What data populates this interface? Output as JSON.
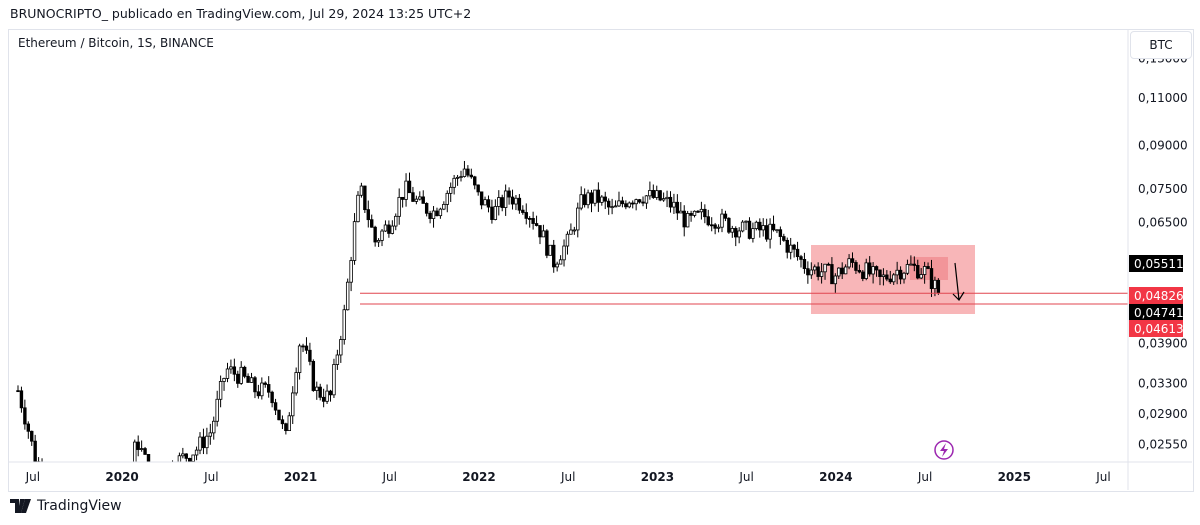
{
  "header": "BRUNOCRIPTO_ publicado en TradingView.com, Jul 29, 2024 13:25 UTC+2",
  "symbol": "Ethereum / Bitcoin, 1S, BINANCE",
  "currency": "BTC",
  "footer": "TradingView",
  "chart_data": {
    "type": "candlestick",
    "scale": "log",
    "ylim": [
      0.0235,
      0.135
    ],
    "y_ticks": [
      "0,13000",
      "0,11000",
      "0,09000",
      "0,07500",
      "0,06500",
      "0,03900",
      "0,03300",
      "0,02900",
      "0,02550"
    ],
    "y_tick_values": [
      0.13,
      0.11,
      0.09,
      0.075,
      0.065,
      0.039,
      0.033,
      0.029,
      0.0255
    ],
    "x_ticks": [
      "Jul",
      "2020",
      "Jul",
      "2021",
      "Jul",
      "2022",
      "Jul",
      "2023",
      "Jul",
      "2024",
      "Jul",
      "2025",
      "Jul"
    ],
    "x_tick_months": [
      1,
      7,
      13,
      19,
      25,
      31,
      37,
      43,
      49,
      55,
      61,
      67,
      73
    ],
    "start_month_label": "Jun 2019",
    "monthly_closes": [
      0.032,
      0.025,
      0.02,
      0.018,
      0.019,
      0.02,
      0.018,
      0.019,
      0.026,
      0.022,
      0.023,
      0.024,
      0.025,
      0.027,
      0.035,
      0.034,
      0.032,
      0.032,
      0.026,
      0.04,
      0.032,
      0.031,
      0.045,
      0.075,
      0.06,
      0.065,
      0.075,
      0.07,
      0.068,
      0.075,
      0.082,
      0.072,
      0.068,
      0.073,
      0.07,
      0.064,
      0.055,
      0.06,
      0.072,
      0.072,
      0.068,
      0.072,
      0.073,
      0.072,
      0.07,
      0.065,
      0.067,
      0.066,
      0.064,
      0.063,
      0.063,
      0.062,
      0.058,
      0.054,
      0.053,
      0.052,
      0.055,
      0.053,
      0.051,
      0.053,
      0.054,
      0.053,
      0.048
    ],
    "price_labels": [
      {
        "text": "0,05511",
        "value": 0.05511,
        "color": "#000000"
      },
      {
        "text": "0,04826",
        "value": 0.04826,
        "color": "#f23645"
      },
      {
        "text": "0,04741",
        "value": 0.04741,
        "color": "#000000"
      },
      {
        "text": "0,04613",
        "value": 0.04613,
        "color": "#f23645"
      }
    ],
    "horizontal_lines": [
      0.04826,
      0.04613
    ],
    "zone": {
      "from_month": "Nov 2023",
      "to_month": "Sep 2024",
      "high": 0.06,
      "low": 0.0455
    }
  }
}
